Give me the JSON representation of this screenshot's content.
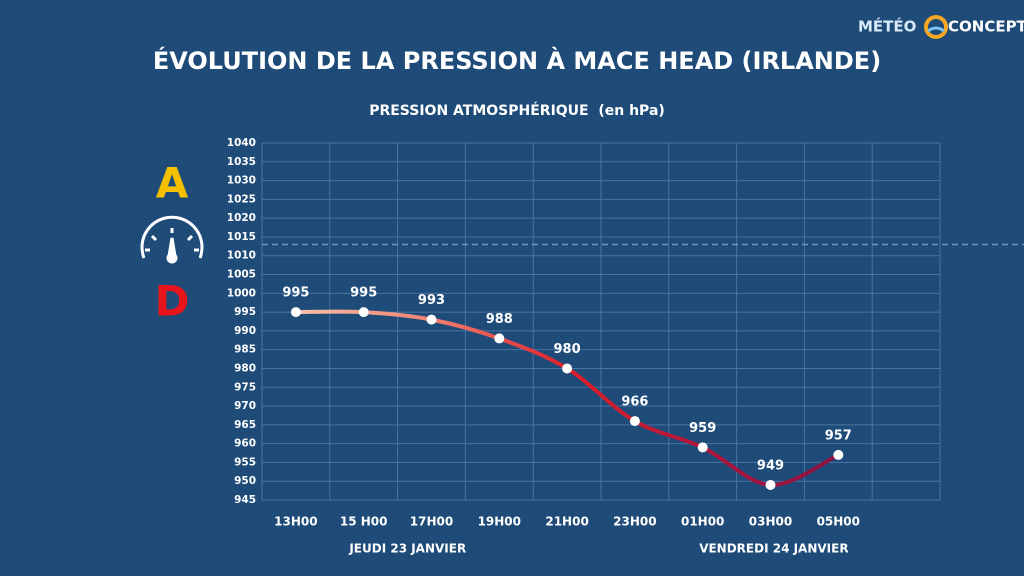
{
  "logo": [
    "MÉTÉO",
    "CONCEPT"
  ],
  "chart_data": {
    "type": "line",
    "title": "ÉVOLUTION DE LA PRESSION À MACE HEAD (IRLANDE)",
    "subtitle": "PRESSION ATMOSPHÉRIQUE  (en hPa)",
    "annotations": [
      "A",
      "D"
    ],
    "day_labels": [
      "JEUDI 23 JANVIER",
      "VENDREDI 24 JANVIER"
    ],
    "categories": [
      "13H00",
      "15 H00",
      "17H00",
      "19H00",
      "21H00",
      "23H00",
      "01H00",
      "03H00",
      "05H00",
      null
    ],
    "values": [
      995,
      995,
      993,
      988,
      980,
      966,
      959,
      949,
      957,
      null
    ],
    "reference_line": 1013,
    "ylim": [
      945,
      1040
    ],
    "yticks": [
      945,
      950,
      955,
      960,
      965,
      970,
      975,
      980,
      985,
      990,
      995,
      1000,
      1005,
      1010,
      1015,
      1020,
      1025,
      1030,
      1035,
      1040
    ],
    "grid": true,
    "colors": [
      "#f6c1a8",
      "#f08070",
      "#e0202a",
      "#b0163a",
      "#8c1242"
    ]
  }
}
